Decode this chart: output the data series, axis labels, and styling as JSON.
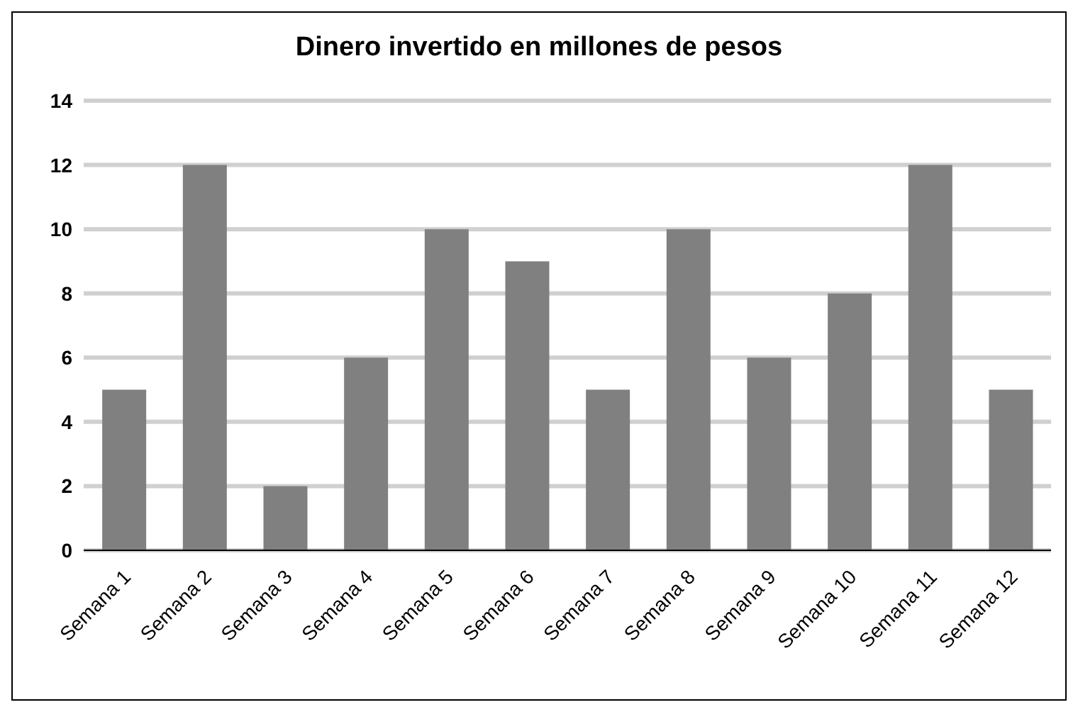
{
  "chart_data": {
    "type": "bar",
    "title": "Dinero invertido en millones de pesos",
    "categories": [
      "Semana 1",
      "Semana 2",
      "Semana 3",
      "Semana 4",
      "Semana 5",
      "Semana 6",
      "Semana 7",
      "Semana 8",
      "Semana 9",
      "Semana 10",
      "Semana 11",
      "Semana 12"
    ],
    "values": [
      5,
      12,
      2,
      6,
      10,
      9,
      5,
      10,
      6,
      8,
      12,
      5
    ],
    "color": "#808080",
    "ylim": [
      0,
      14
    ],
    "yticks": [
      0,
      2,
      4,
      6,
      8,
      10,
      12,
      14
    ],
    "grid": "y"
  }
}
